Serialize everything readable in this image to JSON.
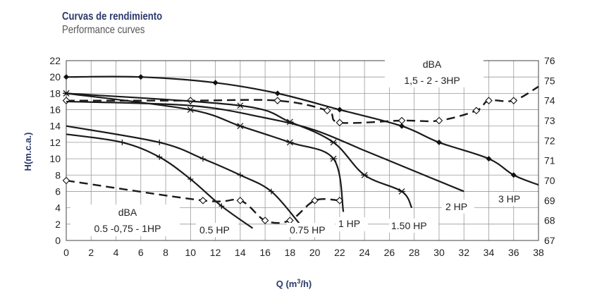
{
  "titles": {
    "spanish": "Curvas de rendimiento",
    "english": "Performance curves"
  },
  "chart_data": {
    "type": "line",
    "xlabel_main": "Q (m",
    "xlabel_sup": "3",
    "xlabel_tail": "/h)",
    "ylabel": "H(m.c.a.)",
    "xlim": [
      0,
      38
    ],
    "ylim": [
      0,
      22
    ],
    "y2lim": [
      67,
      76
    ],
    "grid": true,
    "x_ticks": [
      "0",
      "2",
      "4",
      "6",
      "8",
      "10",
      "12",
      "14",
      "16",
      "18",
      "20",
      "22",
      "24",
      "26",
      "28",
      "30",
      "32",
      "34",
      "36",
      "38"
    ],
    "y_ticks": [
      "0",
      "2",
      "4",
      "6",
      "8",
      "10",
      "12",
      "14",
      "16",
      "18",
      "20",
      "22"
    ],
    "y2_ticks": [
      "67",
      "68",
      "69",
      "70",
      "71",
      "72",
      "73",
      "74",
      "75",
      "76"
    ],
    "annotations": {
      "dba_top": "dBA",
      "dba_top_models": "1,5 - 2 - 3HP",
      "dba_bottom": "dBA",
      "dba_bottom_models": "0.5 -0,75 - 1HP"
    },
    "series": [
      {
        "name": "0.5 HP",
        "marker": "plus",
        "x": [
          0,
          4.5,
          7.5,
          10,
          12.5,
          15
        ],
        "y": [
          13,
          12,
          10.2,
          7.5,
          4.2,
          1.5
        ]
      },
      {
        "name": "0.75 HP",
        "marker": "plus",
        "x": [
          0,
          7.5,
          11,
          14,
          16.5,
          18.8
        ],
        "y": [
          14,
          12,
          10,
          8,
          6,
          2
        ]
      },
      {
        "name": "1 HP",
        "marker": "star",
        "x": [
          0,
          10,
          14,
          18,
          21.5,
          22.3
        ],
        "y": [
          18,
          16,
          14,
          12,
          10,
          3.5
        ]
      },
      {
        "name": "1.50 HP",
        "marker": "star",
        "x": [
          0,
          14,
          18,
          21.5,
          24,
          27,
          27.8
        ],
        "y": [
          18,
          16.5,
          14.5,
          12,
          8,
          6,
          4
        ]
      },
      {
        "name": "2 HP",
        "marker": "none",
        "x": [
          0,
          10,
          16,
          20,
          24,
          28,
          32
        ],
        "y": [
          17,
          16.5,
          15,
          13.5,
          11,
          8.5,
          6
        ]
      },
      {
        "name": "3 HP",
        "marker": "diamond",
        "x": [
          0,
          6,
          12,
          17,
          22,
          27,
          30,
          34,
          36,
          38
        ],
        "y": [
          20,
          20,
          19.3,
          18,
          16,
          14,
          12,
          10,
          8,
          6.8
        ]
      }
    ],
    "noise_series": [
      {
        "name": "dBA 1,5 - 2 - 3HP",
        "axis": "right",
        "x": [
          0,
          10,
          17,
          21,
          22,
          27,
          30,
          33,
          34,
          36,
          38
        ],
        "y": [
          74,
          74,
          74,
          73.5,
          72.9,
          73,
          73,
          73.5,
          74,
          74,
          74.7
        ]
      },
      {
        "name": "dBA 0.5 -0,75 - 1HP",
        "axis": "right",
        "x": [
          0,
          11,
          14,
          16,
          18,
          20,
          22
        ],
        "y": [
          70,
          69,
          69,
          68,
          68,
          69,
          69
        ]
      }
    ],
    "series_labels": [
      "0.5 HP",
      "0.75 HP",
      "1 HP",
      "1.50 HP",
      "2 HP",
      "3 HP"
    ]
  }
}
